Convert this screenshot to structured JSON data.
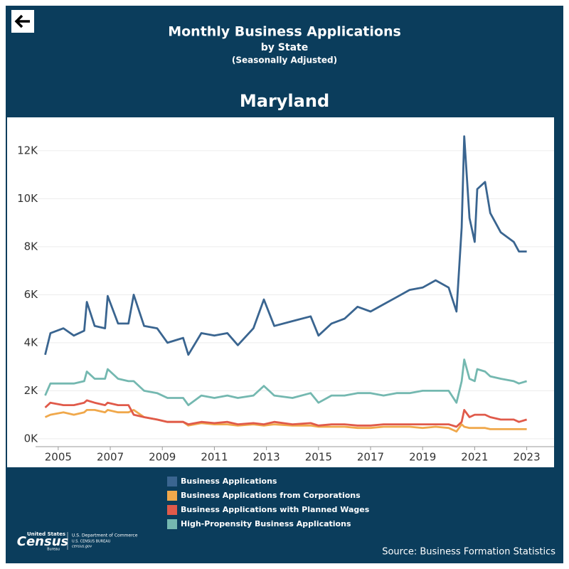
{
  "chart_data": {
    "type": "line",
    "title": "Monthly Business Applications",
    "subtitle": "by State",
    "note": "(Seasonally Adjusted)",
    "state": "Maryland",
    "source": "Source: Business Formation Statistics",
    "logo": {
      "name": "Census",
      "top": "United States",
      "bottom": "Bureau",
      "line1": "U.S. Department of Commerce",
      "line2": "U.S. CENSUS BUREAU",
      "line3": "census.gov"
    },
    "x": [
      2004.5,
      2004.7,
      2005.2,
      2005.6,
      2006.0,
      2006.1,
      2006.4,
      2006.8,
      2006.9,
      2007.3,
      2007.7,
      2007.9,
      2008.3,
      2008.8,
      2009.2,
      2009.8,
      2010.0,
      2010.5,
      2011.0,
      2011.5,
      2011.9,
      2012.5,
      2012.9,
      2013.3,
      2014.0,
      2014.7,
      2015.0,
      2015.5,
      2016.0,
      2016.5,
      2017.0,
      2017.5,
      2018.0,
      2018.5,
      2019.0,
      2019.5,
      2020.0,
      2020.3,
      2020.5,
      2020.6,
      2020.8,
      2021.0,
      2021.1,
      2021.4,
      2021.6,
      2022.0,
      2022.5,
      2022.7,
      2023.0
    ],
    "series": [
      {
        "name": "Business Applications",
        "color": "#3a6590",
        "values": [
          3500,
          4400,
          4600,
          4300,
          4500,
          5700,
          4700,
          4600,
          5950,
          4800,
          4800,
          6000,
          4700,
          4600,
          4000,
          4200,
          3500,
          4400,
          4300,
          4400,
          3900,
          4600,
          5800,
          4700,
          4900,
          5100,
          4300,
          4800,
          5000,
          5500,
          5300,
          5600,
          5900,
          6200,
          6300,
          6600,
          6300,
          5300,
          8800,
          12600,
          9200,
          8200,
          10400,
          10700,
          9400,
          8600,
          8200,
          7800,
          7800
        ]
      },
      {
        "name": "Business Applications from Corporations",
        "color": "#f0a84b",
        "values": [
          900,
          1000,
          1100,
          1000,
          1100,
          1200,
          1200,
          1100,
          1200,
          1100,
          1100,
          1200,
          900,
          800,
          700,
          700,
          550,
          650,
          600,
          600,
          550,
          600,
          550,
          600,
          550,
          550,
          500,
          500,
          500,
          450,
          450,
          500,
          500,
          500,
          450,
          500,
          450,
          300,
          600,
          500,
          450,
          450,
          450,
          450,
          400,
          400,
          400,
          400,
          400
        ]
      },
      {
        "name": "Business Applications with Planned Wages",
        "color": "#e05a4a",
        "values": [
          1300,
          1500,
          1400,
          1400,
          1500,
          1600,
          1500,
          1400,
          1500,
          1400,
          1400,
          1000,
          900,
          800,
          700,
          700,
          600,
          700,
          650,
          700,
          600,
          650,
          600,
          700,
          600,
          650,
          550,
          600,
          600,
          550,
          550,
          600,
          600,
          600,
          600,
          600,
          600,
          500,
          700,
          1200,
          900,
          1000,
          1000,
          1000,
          900,
          800,
          800,
          700,
          800
        ]
      },
      {
        "name": "High-Propensity Business Applications",
        "color": "#74b8b0",
        "values": [
          1800,
          2300,
          2300,
          2300,
          2400,
          2800,
          2500,
          2500,
          2900,
          2500,
          2400,
          2400,
          2000,
          1900,
          1700,
          1700,
          1400,
          1800,
          1700,
          1800,
          1700,
          1800,
          2200,
          1800,
          1700,
          1900,
          1500,
          1800,
          1800,
          1900,
          1900,
          1800,
          1900,
          1900,
          2000,
          2000,
          2000,
          1500,
          2400,
          3300,
          2500,
          2400,
          2900,
          2800,
          2600,
          2500,
          2400,
          2300,
          2400
        ]
      }
    ],
    "xlim": [
      2004.13,
      2024.05
    ],
    "xticks": [
      2005,
      2007,
      2009,
      2011,
      2013,
      2015,
      2017,
      2019,
      2021,
      2023
    ],
    "ylim": [
      -330,
      13390
    ],
    "yticks": [
      {
        "value": 0,
        "label": "0K"
      },
      {
        "value": 2000,
        "label": "2K"
      },
      {
        "value": 4000,
        "label": "4K"
      },
      {
        "value": 6000,
        "label": "6K"
      },
      {
        "value": 8000,
        "label": "8K"
      },
      {
        "value": 10000,
        "label": "10K"
      },
      {
        "value": 12000,
        "label": "12K"
      }
    ],
    "grid": true
  }
}
